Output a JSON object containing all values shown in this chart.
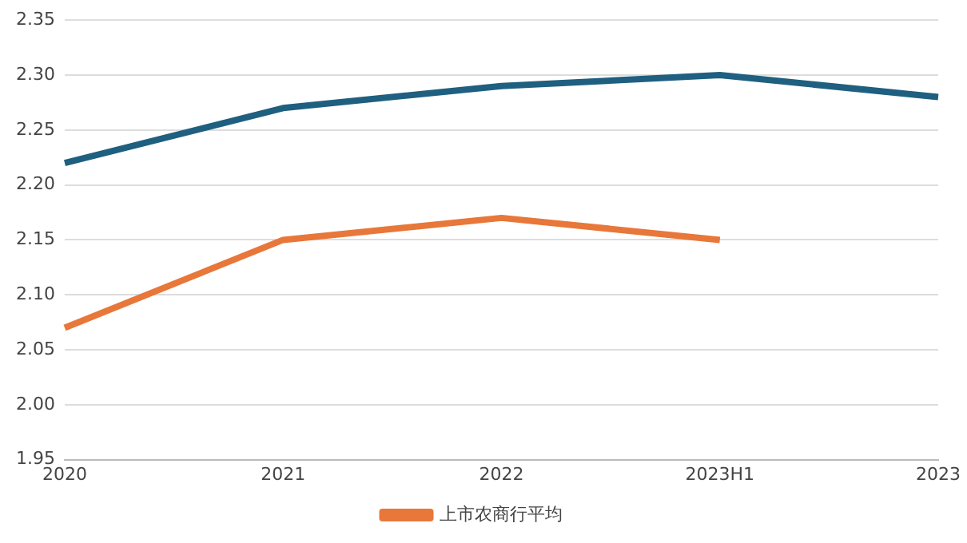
{
  "chart_data": {
    "type": "line",
    "categories": [
      "2020",
      "2021",
      "2022",
      "2023H1",
      "2023"
    ],
    "series": [
      {
        "color": "#1f5f80",
        "values": [
          2.22,
          2.27,
          2.29,
          2.3,
          2.28
        ]
      },
      {
        "name": "上市农商行平均",
        "color": "#e8773a",
        "values": [
          2.07,
          2.15,
          2.17,
          2.15,
          null
        ]
      }
    ],
    "ylim": [
      1.95,
      2.35
    ],
    "yticks": [
      {
        "value": 1.95,
        "label": "1.95"
      },
      {
        "value": 2.0,
        "label": "2.00"
      },
      {
        "value": 2.05,
        "label": "2.05"
      },
      {
        "value": 2.1,
        "label": "2.10"
      },
      {
        "value": 2.15,
        "label": "2.15"
      },
      {
        "value": 2.2,
        "label": "2.20"
      },
      {
        "value": 2.25,
        "label": "2.25"
      },
      {
        "value": 2.3,
        "label": "2.30"
      },
      {
        "value": 2.35,
        "label": "2.35"
      }
    ],
    "grid": "y",
    "legend": "bottom",
    "marker": "none",
    "line_style": "solid"
  }
}
